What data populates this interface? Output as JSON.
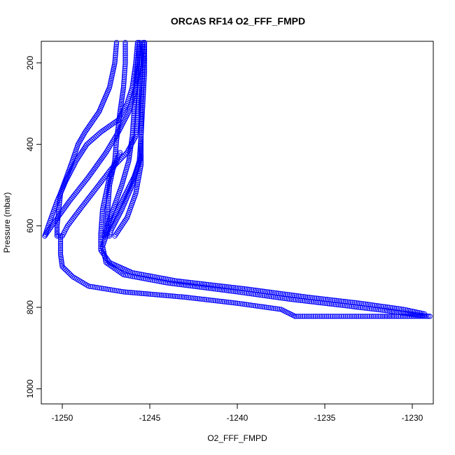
{
  "chart_data": {
    "type": "scatter",
    "title": "ORCAS RF14 O2_FFF_FMPD",
    "xlabel": "O2_FFF_FMPD",
    "ylabel": "Pressure (mbar)",
    "xlim": [
      -1251.2,
      -1228.8
    ],
    "ylim": [
      1037,
      147
    ],
    "y_reversed": true,
    "x_ticks": [
      -1250,
      -1245,
      -1240,
      -1235,
      -1230
    ],
    "x_tick_labels": [
      "-1250",
      "-1245",
      "-1240",
      "-1235",
      "-1230"
    ],
    "y_ticks": [
      200,
      400,
      600,
      800,
      1000
    ],
    "y_tick_labels": [
      "200",
      "400",
      "600",
      "800",
      "1000"
    ],
    "marker": "open-circle",
    "color": "#0000ff",
    "grid": false,
    "legend": "none",
    "series": [
      {
        "values": [
          [
            -1245.7,
            150
          ],
          [
            -1245.8,
            200
          ],
          [
            -1246.0,
            260
          ],
          [
            -1246.3,
            300
          ],
          [
            -1246.8,
            340
          ],
          [
            -1247.8,
            370
          ],
          [
            -1248.6,
            400
          ],
          [
            -1249.2,
            440
          ],
          [
            -1249.8,
            490
          ],
          [
            -1250.3,
            540
          ],
          [
            -1250.8,
            600
          ],
          [
            -1251.0,
            625
          ]
        ]
      },
      {
        "values": [
          [
            -1245.6,
            150
          ],
          [
            -1245.6,
            200
          ],
          [
            -1245.8,
            260
          ],
          [
            -1246.2,
            320
          ],
          [
            -1246.8,
            370
          ],
          [
            -1247.5,
            420
          ],
          [
            -1248.5,
            480
          ],
          [
            -1249.6,
            540
          ],
          [
            -1250.6,
            600
          ],
          [
            -1251.0,
            625
          ]
        ]
      },
      {
        "values": [
          [
            -1246.9,
            150
          ],
          [
            -1247.0,
            200
          ],
          [
            -1247.3,
            260
          ],
          [
            -1247.9,
            320
          ],
          [
            -1248.7,
            370
          ],
          [
            -1249.1,
            400
          ],
          [
            -1249.5,
            450
          ],
          [
            -1250.1,
            520
          ],
          [
            -1250.3,
            600
          ],
          [
            -1250.3,
            625
          ],
          [
            -1250.0,
            625
          ]
        ]
      },
      {
        "values": [
          [
            -1245.4,
            150
          ],
          [
            -1245.5,
            200
          ],
          [
            -1245.6,
            260
          ],
          [
            -1245.7,
            320
          ],
          [
            -1245.8,
            380
          ],
          [
            -1246.3,
            420
          ],
          [
            -1247.2,
            460
          ],
          [
            -1248.1,
            510
          ],
          [
            -1249.0,
            560
          ],
          [
            -1249.7,
            600
          ],
          [
            -1250.0,
            625
          ]
        ]
      },
      {
        "values": [
          [
            -1246.4,
            150
          ],
          [
            -1246.4,
            200
          ],
          [
            -1246.5,
            260
          ],
          [
            -1246.7,
            320
          ],
          [
            -1246.9,
            390
          ],
          [
            -1247.0,
            440
          ],
          [
            -1247.3,
            500
          ],
          [
            -1247.4,
            560
          ],
          [
            -1247.5,
            625
          ]
        ]
      },
      {
        "values": [
          [
            -1245.6,
            150
          ],
          [
            -1245.7,
            200
          ],
          [
            -1245.8,
            260
          ],
          [
            -1245.9,
            320
          ],
          [
            -1246.0,
            380
          ],
          [
            -1246.2,
            440
          ],
          [
            -1246.6,
            500
          ],
          [
            -1247.1,
            560
          ],
          [
            -1247.6,
            625
          ],
          [
            -1247.4,
            625
          ]
        ]
      },
      {
        "values": [
          [
            -1245.3,
            150
          ],
          [
            -1245.4,
            220
          ],
          [
            -1245.5,
            300
          ],
          [
            -1245.5,
            380
          ],
          [
            -1245.6,
            440
          ],
          [
            -1246.0,
            500
          ],
          [
            -1246.6,
            560
          ],
          [
            -1247.2,
            610
          ],
          [
            -1247.3,
            625
          ]
        ]
      },
      {
        "values": [
          [
            -1247.0,
            625
          ],
          [
            -1246.3,
            580
          ],
          [
            -1245.8,
            520
          ],
          [
            -1245.5,
            450
          ],
          [
            -1245.5,
            380
          ],
          [
            -1245.4,
            300
          ],
          [
            -1245.3,
            220
          ],
          [
            -1245.3,
            150
          ]
        ]
      },
      {
        "values": [
          [
            -1245.5,
            430
          ],
          [
            -1245.9,
            480
          ],
          [
            -1246.6,
            540
          ],
          [
            -1247.3,
            600
          ],
          [
            -1247.7,
            650
          ],
          [
            -1247.5,
            690
          ],
          [
            -1246.5,
            720
          ],
          [
            -1244.0,
            740
          ],
          [
            -1240.0,
            762
          ],
          [
            -1237.0,
            780
          ],
          [
            -1234.0,
            795
          ],
          [
            -1231.5,
            808
          ],
          [
            -1229.9,
            818
          ],
          [
            -1229.0,
            822
          ]
        ]
      },
      {
        "values": [
          [
            -1246.7,
            420
          ],
          [
            -1247.3,
            480
          ],
          [
            -1247.7,
            560
          ],
          [
            -1247.8,
            620
          ],
          [
            -1247.8,
            660
          ],
          [
            -1247.3,
            690
          ],
          [
            -1246.0,
            715
          ],
          [
            -1243.5,
            735
          ],
          [
            -1239.5,
            755
          ],
          [
            -1236.0,
            775
          ],
          [
            -1233.0,
            790
          ],
          [
            -1230.5,
            805
          ],
          [
            -1229.3,
            816
          ]
        ]
      },
      {
        "values": [
          [
            -1250.1,
            625
          ],
          [
            -1250.1,
            670
          ],
          [
            -1250.0,
            700
          ],
          [
            -1249.4,
            725
          ],
          [
            -1248.5,
            748
          ],
          [
            -1246.5,
            762
          ],
          [
            -1243.0,
            775
          ],
          [
            -1240.0,
            790
          ],
          [
            -1237.5,
            805
          ],
          [
            -1236.7,
            822
          ]
        ]
      },
      {
        "values": [
          [
            -1236.7,
            822
          ],
          [
            -1235.0,
            822
          ],
          [
            -1233.5,
            822
          ],
          [
            -1231.7,
            822
          ],
          [
            -1231.5,
            822
          ],
          [
            -1231.0,
            822
          ],
          [
            -1229.0,
            822
          ]
        ]
      }
    ]
  }
}
